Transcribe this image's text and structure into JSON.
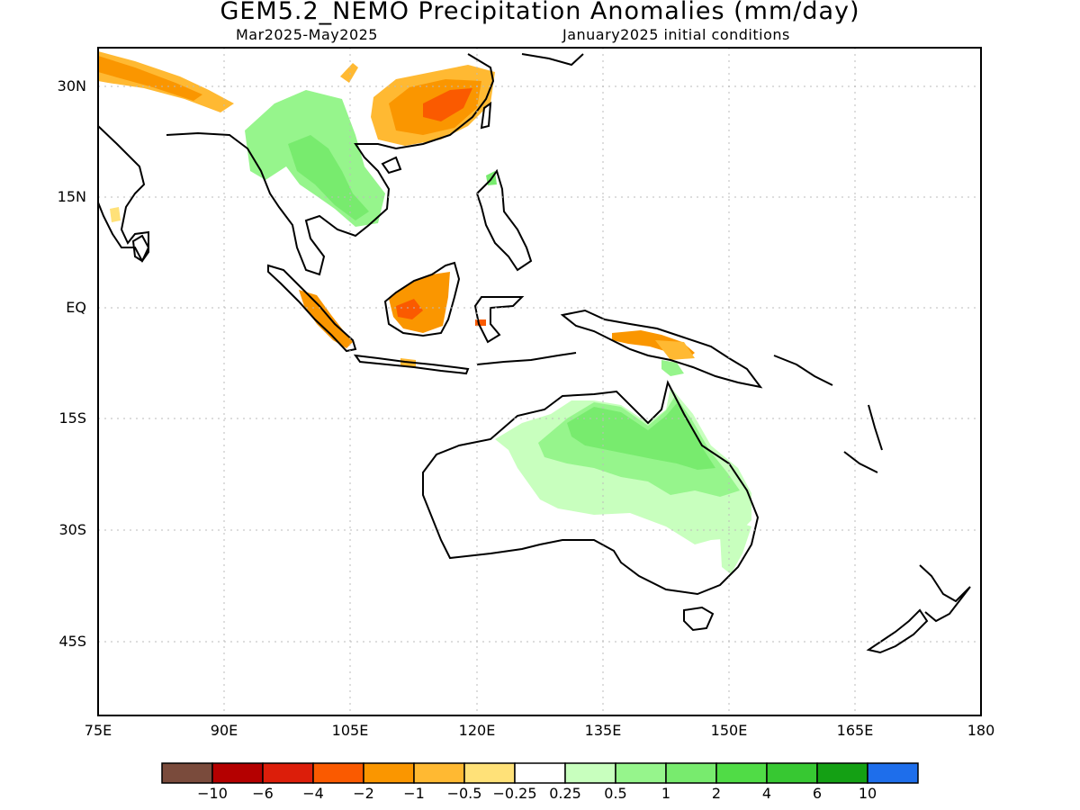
{
  "header": {
    "title": "GEM5.2_NEMO Precipitation Anomalies (mm/day)",
    "period": "Mar2025-May2025",
    "init": "January2025 initial conditions"
  },
  "axes": {
    "lat_labels": [
      "30N",
      "15N",
      "EQ",
      "15S",
      "30S",
      "45S"
    ],
    "lon_labels": [
      "75E",
      "90E",
      "105E",
      "120E",
      "135E",
      "150E",
      "165E",
      "180"
    ]
  },
  "colorbar": {
    "colors": [
      "#7a4b3c",
      "#b40000",
      "#dc1e0a",
      "#fa5a00",
      "#fa9600",
      "#ffb932",
      "#ffe178",
      "#ffffff",
      "#c8ffbe",
      "#96f58c",
      "#78eb6e",
      "#50dc46",
      "#37c832",
      "#14a014",
      "#1e6eeb"
    ],
    "labels": [
      "−10",
      "−6",
      "−4",
      "−2",
      "−1",
      "−0.5",
      "−0.25",
      "0.25",
      "0.5",
      "1",
      "2",
      "4",
      "6",
      "10"
    ]
  },
  "colors": {
    "dry_strong": "#fa5a00",
    "dry_mod": "#fa9600",
    "dry_light": "#ffb932",
    "wet_light": "#c8ffbe",
    "wet_mod": "#96f58c",
    "wet_strong": "#50dc46"
  }
}
